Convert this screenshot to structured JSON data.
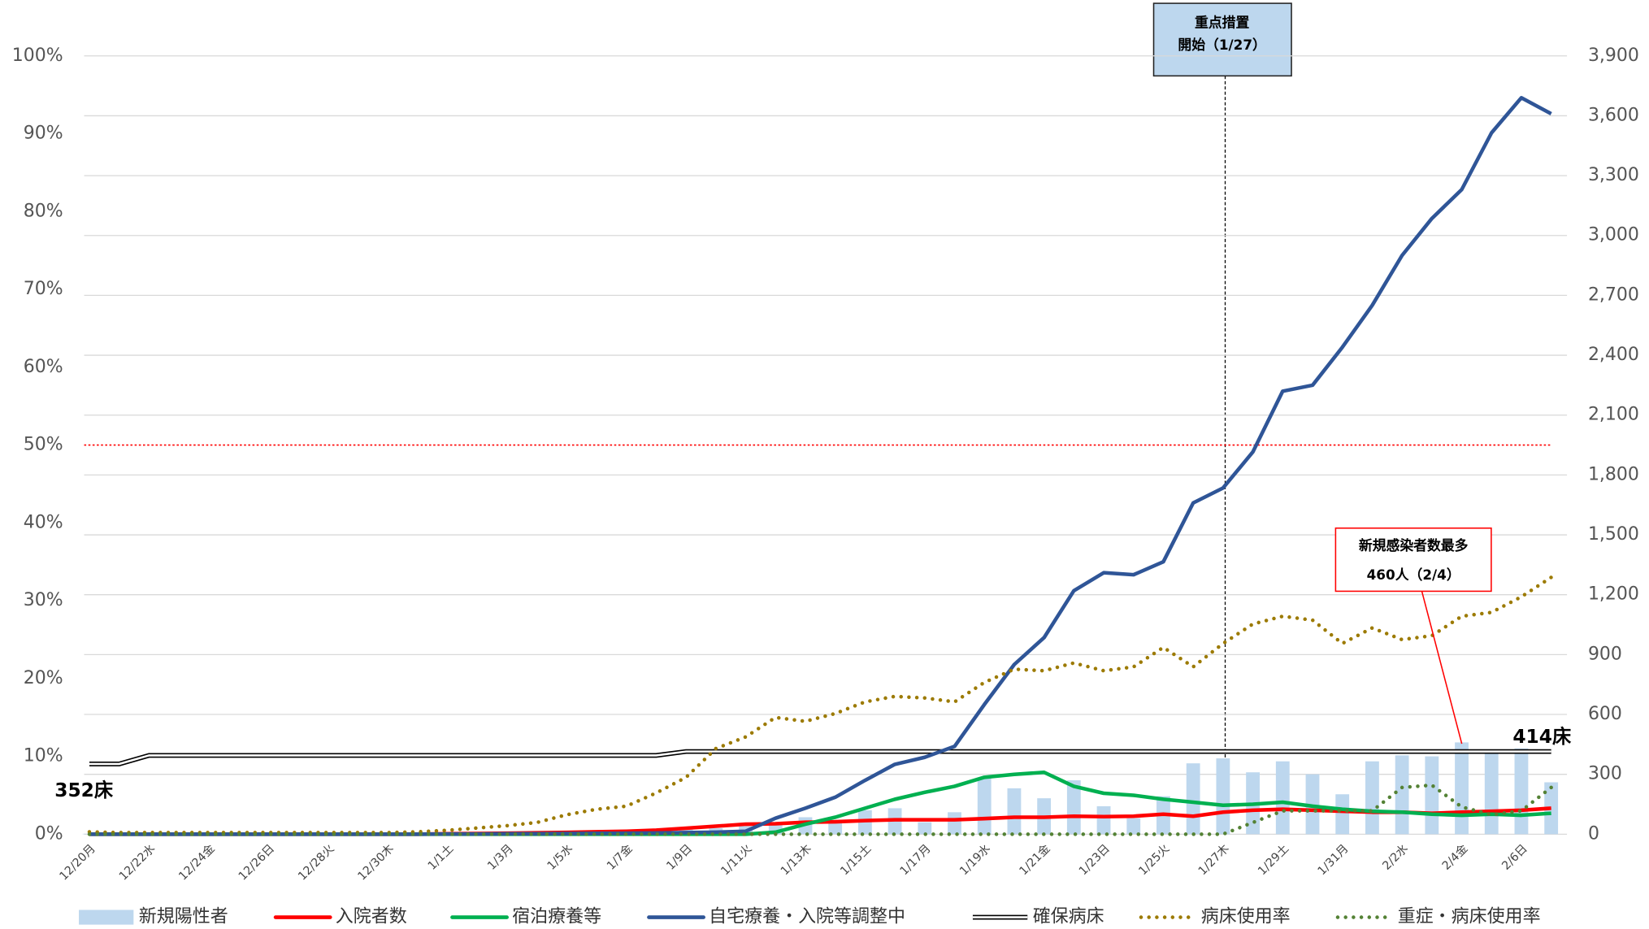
{
  "chart_data": {
    "type": "combo",
    "categories": [
      "12/20月",
      null,
      "12/22水",
      null,
      "12/24金",
      null,
      "12/26日",
      null,
      "12/28火",
      null,
      "12/30木",
      null,
      "1/1土",
      null,
      "1/3月",
      null,
      "1/5水",
      null,
      "1/7金",
      null,
      "1/9日",
      null,
      "1/11火",
      null,
      "1/13木",
      null,
      "1/15土",
      null,
      "1/17月",
      null,
      "1/19水",
      null,
      "1/21金",
      null,
      "1/23日",
      null,
      "1/25火",
      null,
      "1/27木",
      null,
      "1/29土",
      null,
      "1/31月",
      null,
      "2/2水",
      null,
      "2/4金",
      null,
      "2/6日",
      null
    ],
    "series": [
      {
        "name": "新規陽性者",
        "style": "bar",
        "axis": "y2",
        "color": "#bdd7ee",
        "values": [
          2,
          3,
          1,
          2,
          3,
          4,
          2,
          1,
          3,
          2,
          4,
          3,
          5,
          6,
          8,
          10,
          12,
          15,
          18,
          20,
          25,
          30,
          40,
          55,
          85,
          60,
          120,
          130,
          60,
          110,
          280,
          230,
          180,
          270,
          140,
          80,
          190,
          355,
          380,
          310,
          365,
          300,
          200,
          365,
          395,
          390,
          460,
          420,
          430,
          260
        ]
      },
      {
        "name": "入院者数",
        "style": "line",
        "axis": "y2",
        "color": "#ff0000",
        "values": [
          0,
          0,
          0,
          0,
          0,
          0,
          0,
          0,
          0,
          0,
          0,
          0,
          2,
          3,
          5,
          7,
          9,
          12,
          15,
          20,
          30,
          40,
          50,
          52,
          60,
          62,
          68,
          72,
          72,
          72,
          78,
          85,
          85,
          90,
          88,
          90,
          100,
          90,
          110,
          120,
          125,
          120,
          115,
          110,
          110,
          105,
          110,
          115,
          120,
          130
        ]
      },
      {
        "name": "宿泊療養等",
        "style": "line",
        "axis": "y2",
        "color": "#00b050",
        "values": [
          0,
          0,
          0,
          0,
          0,
          0,
          0,
          0,
          0,
          0,
          0,
          0,
          0,
          0,
          0,
          0,
          0,
          0,
          0,
          0,
          0,
          0,
          0,
          10,
          50,
          85,
          130,
          175,
          210,
          240,
          285,
          300,
          310,
          240,
          205,
          195,
          175,
          160,
          145,
          150,
          160,
          140,
          125,
          115,
          110,
          100,
          95,
          100,
          95,
          105
        ]
      },
      {
        "name": "自宅療養・入院等調整中",
        "style": "line",
        "axis": "y2",
        "color": "#2f5597",
        "values": [
          0,
          0,
          0,
          0,
          0,
          0,
          0,
          0,
          0,
          0,
          0,
          0,
          1,
          1,
          2,
          2,
          3,
          4,
          5,
          6,
          8,
          10,
          15,
          80,
          130,
          185,
          270,
          350,
          385,
          440,
          650,
          850,
          985,
          1220,
          1310,
          1300,
          1365,
          1660,
          1735,
          1915,
          2220,
          2250,
          2440,
          2650,
          2900,
          3085,
          3230,
          3515,
          3690,
          3610
        ]
      },
      {
        "name": "確保病床",
        "style": "double",
        "axis": "y2",
        "color": "#000000",
        "values": [
          352,
          352,
          395,
          395,
          395,
          395,
          395,
          395,
          395,
          395,
          395,
          395,
          395,
          395,
          395,
          395,
          395,
          395,
          395,
          395,
          414,
          414,
          414,
          414,
          414,
          414,
          414,
          414,
          414,
          414,
          414,
          414,
          414,
          414,
          414,
          414,
          414,
          414,
          414,
          414,
          414,
          414,
          414,
          414,
          414,
          414,
          414,
          414,
          414,
          414
        ]
      },
      {
        "name": "病床使用率",
        "style": "dotted",
        "axis": "y",
        "color": "#9c7a00",
        "values": [
          0.3,
          0.2,
          0.2,
          0.2,
          0.2,
          0.2,
          0.2,
          0.2,
          0.2,
          0.2,
          0.2,
          0.3,
          0.5,
          0.8,
          1.1,
          1.5,
          2.5,
          3.2,
          3.6,
          5.3,
          7.3,
          11,
          12.5,
          15,
          14.5,
          15.5,
          17,
          17.7,
          17.5,
          17,
          19.5,
          21.2,
          21,
          22,
          21,
          21.5,
          24,
          21.5,
          24.5,
          27,
          28,
          27.5,
          24.5,
          26.5,
          25,
          25.5,
          28,
          28.5,
          30.5,
          33
        ]
      },
      {
        "name": "重症・病床使用率",
        "style": "dotted",
        "axis": "y",
        "color": "#548235",
        "values": [
          0,
          0,
          0,
          0,
          0,
          0,
          0,
          0,
          0,
          0,
          0,
          0,
          0,
          0,
          0,
          0,
          0,
          0,
          0,
          0,
          0,
          0,
          0,
          0,
          0,
          0,
          0,
          0,
          0,
          0,
          0,
          0,
          0,
          0,
          0,
          0,
          0,
          0,
          0,
          1.5,
          3,
          3,
          3,
          3,
          6,
          6.3,
          3.5,
          2.5,
          3,
          6
        ]
      }
    ],
    "ylim": [
      0,
      100
    ],
    "yticks": [
      {
        "value": 0,
        "label": "0%"
      },
      {
        "value": 10,
        "label": "10%"
      },
      {
        "value": 20,
        "label": "20%"
      },
      {
        "value": 30,
        "label": "30%"
      },
      {
        "value": 40,
        "label": "40%"
      },
      {
        "value": 50,
        "label": "50%"
      },
      {
        "value": 60,
        "label": "60%"
      },
      {
        "value": 70,
        "label": "70%"
      },
      {
        "value": 80,
        "label": "80%"
      },
      {
        "value": 90,
        "label": "90%"
      },
      {
        "value": 100,
        "label": "100%"
      }
    ],
    "y2lim": [
      0,
      3900
    ],
    "y2ticks": [
      0,
      300,
      600,
      900,
      {
        "value": 1200,
        "label": "1,200"
      },
      {
        "value": 1500,
        "label": "1,500"
      },
      {
        "value": 1800,
        "label": "1,800"
      },
      {
        "value": 2100,
        "label": "2,100"
      },
      {
        "value": 2400,
        "label": "2,400"
      },
      {
        "value": 2700,
        "label": "2,700"
      },
      {
        "value": 3000,
        "label": "3,000"
      },
      {
        "value": 3300,
        "label": "3,300"
      },
      {
        "value": 3600,
        "label": "3,600"
      },
      {
        "value": 3900,
        "label": "3,900"
      }
    ],
    "grid": true,
    "reference_line": {
      "value": 50,
      "axis": "y",
      "color": "#ff0000"
    },
    "legend": "bottom",
    "annotations": {
      "measure": [
        "重点措置",
        "開始（1/27）"
      ],
      "peak": [
        "新規感染者数最多",
        "460人（2/4）"
      ],
      "bed_start": "352床",
      "bed_end": "414床"
    }
  }
}
